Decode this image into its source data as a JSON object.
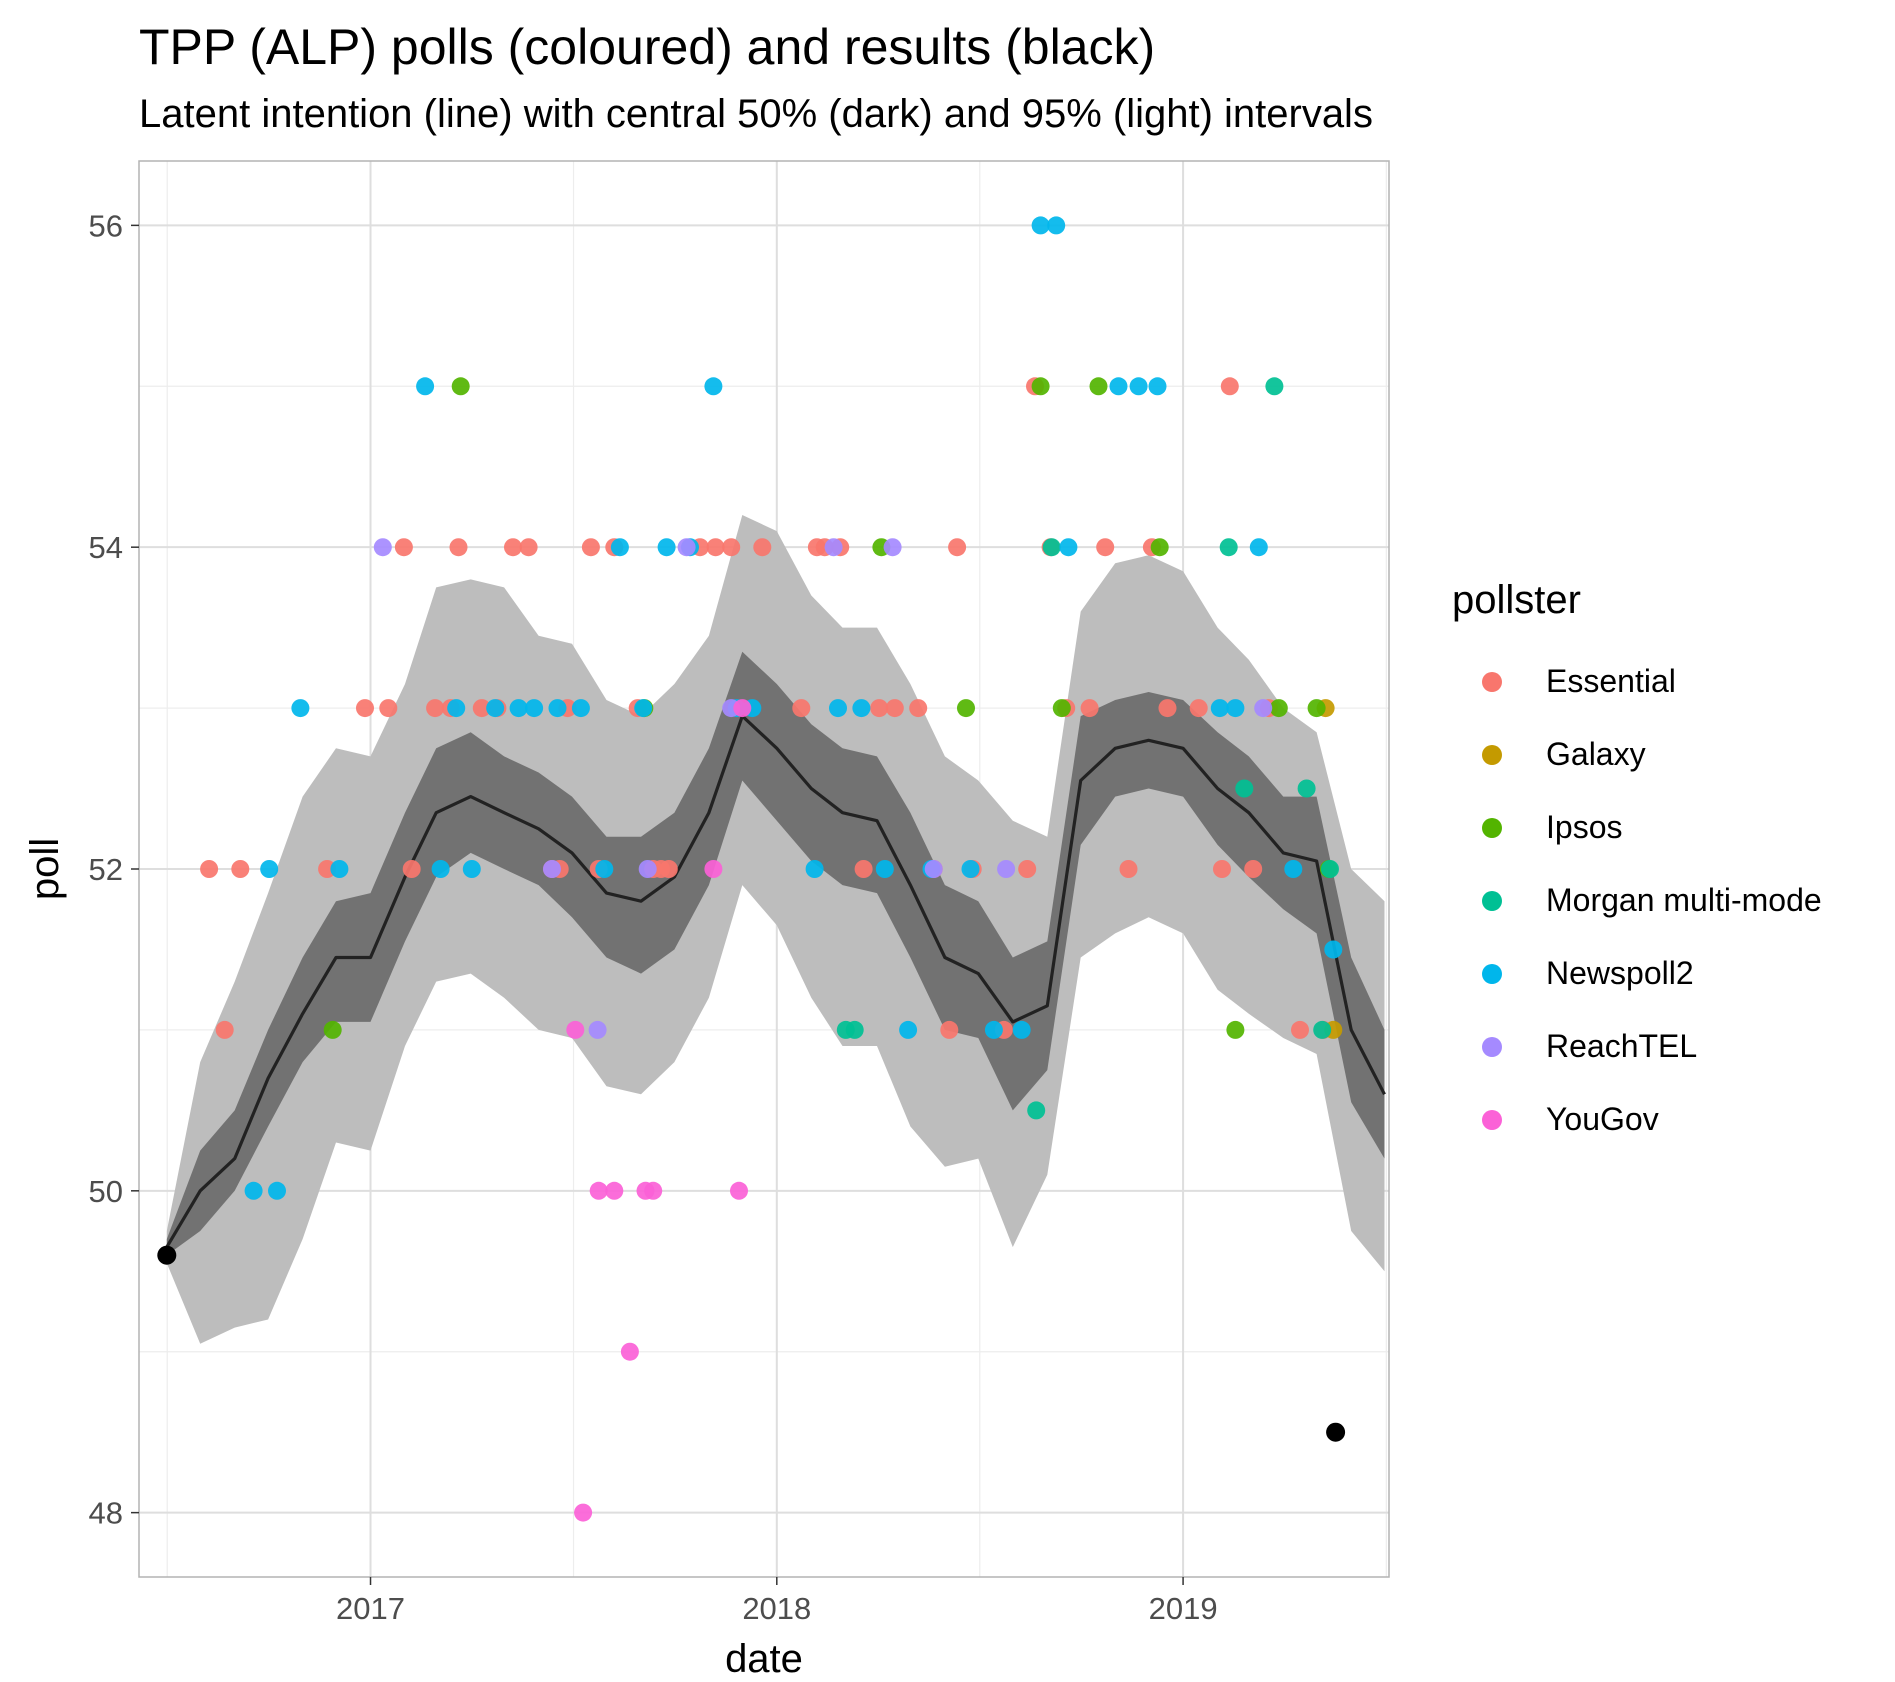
{
  "chart_data": {
    "type": "scatter",
    "title": "TPP (ALP) polls (coloured) and results (black)",
    "subtitle": "Latent intention (line) with central 50% (dark) and 95% (light) intervals",
    "xlabel": "date",
    "ylabel": "poll",
    "xlim": [
      "2016-06-07",
      "2019-07-05"
    ],
    "ylim": [
      47.6,
      56.4
    ],
    "x_ticks": [
      "2017-01-01",
      "2018-01-01",
      "2019-01-01"
    ],
    "x_tick_labels": [
      "2017",
      "2018",
      "2019"
    ],
    "y_ticks": [
      48,
      50,
      52,
      54,
      56
    ],
    "y_tick_labels": [
      "48",
      "50",
      "52",
      "54",
      "56"
    ],
    "grid": true,
    "legend_title": "pollster",
    "legend_position": "right",
    "colors": {
      "Essential": "#F8766D",
      "Galaxy": "#C49A00",
      "Ipsos": "#53B400",
      "Morgan multi-mode": "#00C094",
      "Newspoll2": "#00B6EB",
      "ReachTEL": "#A58AFF",
      "YouGov": "#FB61D7",
      "results": "#000000",
      "line": "#222222",
      "band_95": "#bdbdbd",
      "band_50": "#6e6e6e"
    },
    "legend": [
      "Essential",
      "Galaxy",
      "Ipsos",
      "Morgan multi-mode",
      "Newspoll2",
      "ReachTEL",
      "YouGov"
    ],
    "latent": {
      "x": [
        "2016-07-02",
        "2016-08-01",
        "2016-09-01",
        "2016-10-01",
        "2016-11-01",
        "2016-12-01",
        "2017-01-01",
        "2017-02-01",
        "2017-03-01",
        "2017-04-01",
        "2017-05-01",
        "2017-06-01",
        "2017-07-01",
        "2017-08-01",
        "2017-09-01",
        "2017-10-01",
        "2017-11-01",
        "2017-12-01",
        "2018-01-01",
        "2018-02-01",
        "2018-03-01",
        "2018-04-01",
        "2018-05-01",
        "2018-06-01",
        "2018-07-01",
        "2018-08-01",
        "2018-09-01",
        "2018-10-01",
        "2018-11-01",
        "2018-12-01",
        "2019-01-01",
        "2019-02-01",
        "2019-03-01",
        "2019-04-01",
        "2019-05-01",
        "2019-06-01",
        "2019-07-01"
      ],
      "mid": [
        49.65,
        50.0,
        50.2,
        50.7,
        51.1,
        51.45,
        51.45,
        51.95,
        52.35,
        52.45,
        52.35,
        52.25,
        52.1,
        51.85,
        51.8,
        51.95,
        52.35,
        52.95,
        52.75,
        52.5,
        52.35,
        52.3,
        51.9,
        51.45,
        51.35,
        51.05,
        51.15,
        52.55,
        52.75,
        52.8,
        52.75,
        52.5,
        52.35,
        52.1,
        52.05,
        51.0,
        50.6
      ],
      "lo50": [
        49.6,
        49.75,
        50.0,
        50.4,
        50.8,
        51.05,
        51.05,
        51.55,
        51.95,
        52.1,
        52.0,
        51.9,
        51.7,
        51.45,
        51.35,
        51.5,
        51.9,
        52.55,
        52.3,
        52.05,
        51.9,
        51.85,
        51.45,
        51.0,
        50.95,
        50.5,
        50.75,
        52.15,
        52.45,
        52.5,
        52.45,
        52.15,
        51.95,
        51.75,
        51.6,
        50.55,
        50.2
      ],
      "hi50": [
        49.7,
        50.25,
        50.5,
        51.0,
        51.45,
        51.8,
        51.85,
        52.35,
        52.75,
        52.85,
        52.7,
        52.6,
        52.45,
        52.2,
        52.2,
        52.35,
        52.75,
        53.35,
        53.15,
        52.9,
        52.75,
        52.7,
        52.35,
        51.9,
        51.8,
        51.45,
        51.55,
        52.95,
        53.05,
        53.1,
        53.05,
        52.85,
        52.7,
        52.45,
        52.45,
        51.45,
        51.0
      ],
      "lo95": [
        49.55,
        49.05,
        49.15,
        49.2,
        49.7,
        50.3,
        50.25,
        50.9,
        51.3,
        51.35,
        51.2,
        51.0,
        50.95,
        50.65,
        50.6,
        50.8,
        51.2,
        51.9,
        51.65,
        51.2,
        50.9,
        50.9,
        50.4,
        50.15,
        50.2,
        49.65,
        50.1,
        51.45,
        51.6,
        51.7,
        51.6,
        51.25,
        51.1,
        50.95,
        50.85,
        49.75,
        49.5
      ],
      "hi95": [
        49.75,
        50.8,
        51.3,
        51.85,
        52.45,
        52.75,
        52.7,
        53.15,
        53.75,
        53.8,
        53.75,
        53.45,
        53.4,
        53.05,
        52.95,
        53.15,
        53.45,
        54.2,
        54.1,
        53.7,
        53.5,
        53.5,
        53.15,
        52.7,
        52.55,
        52.3,
        52.2,
        53.6,
        53.9,
        53.95,
        53.85,
        53.5,
        53.3,
        53.0,
        52.85,
        52.0,
        51.8
      ]
    },
    "results": [
      {
        "x": "2016-07-02",
        "y": 49.6
      },
      {
        "x": "2019-05-18",
        "y": 48.5
      }
    ],
    "polls": [
      {
        "pollster": "Essential",
        "points": [
          [
            "2016-08-09",
            52
          ],
          [
            "2016-08-23",
            51
          ],
          [
            "2016-09-06",
            52
          ],
          [
            "2016-11-23",
            52
          ],
          [
            "2016-12-27",
            53
          ],
          [
            "2017-01-17",
            53
          ],
          [
            "2017-01-31",
            54
          ],
          [
            "2017-02-07",
            52
          ],
          [
            "2017-02-28",
            53
          ],
          [
            "2017-03-14",
            53
          ],
          [
            "2017-03-21",
            54
          ],
          [
            "2017-04-11",
            53
          ],
          [
            "2017-04-25",
            53
          ],
          [
            "2017-05-09",
            54
          ],
          [
            "2017-05-23",
            54
          ],
          [
            "2017-06-13",
            52
          ],
          [
            "2017-06-20",
            52
          ],
          [
            "2017-06-27",
            53
          ],
          [
            "2017-07-18",
            54
          ],
          [
            "2017-07-25",
            52
          ],
          [
            "2017-08-08",
            54
          ],
          [
            "2017-08-29",
            53
          ],
          [
            "2017-09-12",
            52
          ],
          [
            "2017-09-19",
            52
          ],
          [
            "2017-09-26",
            52
          ],
          [
            "2017-10-24",
            54
          ],
          [
            "2017-11-07",
            54
          ],
          [
            "2017-11-21",
            54
          ],
          [
            "2017-12-19",
            54
          ],
          [
            "2018-01-23",
            53
          ],
          [
            "2018-02-06",
            54
          ],
          [
            "2018-02-13",
            54
          ],
          [
            "2018-02-27",
            54
          ],
          [
            "2018-03-20",
            52
          ],
          [
            "2018-04-03",
            53
          ],
          [
            "2018-04-17",
            53
          ],
          [
            "2018-05-08",
            53
          ],
          [
            "2018-05-22",
            52
          ],
          [
            "2018-06-05",
            51
          ],
          [
            "2018-06-12",
            54
          ],
          [
            "2018-06-26",
            52
          ],
          [
            "2018-07-24",
            51
          ],
          [
            "2018-08-14",
            52
          ],
          [
            "2018-08-21",
            55
          ],
          [
            "2018-09-04",
            54
          ],
          [
            "2018-09-18",
            53
          ],
          [
            "2018-10-09",
            53
          ],
          [
            "2018-10-23",
            54
          ],
          [
            "2018-11-13",
            52
          ],
          [
            "2018-12-04",
            54
          ],
          [
            "2018-12-18",
            53
          ],
          [
            "2019-01-15",
            53
          ],
          [
            "2019-02-05",
            52
          ],
          [
            "2019-02-12",
            55
          ],
          [
            "2019-03-05",
            52
          ],
          [
            "2019-03-19",
            53
          ],
          [
            "2019-04-16",
            51
          ],
          [
            "2019-05-07",
            51
          ]
        ]
      },
      {
        "pollster": "Galaxy",
        "points": [
          [
            "2019-05-09",
            53
          ],
          [
            "2019-05-16",
            51
          ]
        ]
      },
      {
        "pollster": "Ipsos",
        "points": [
          [
            "2016-11-28",
            51
          ],
          [
            "2017-03-23",
            55
          ],
          [
            "2017-09-04",
            53
          ],
          [
            "2018-04-05",
            54
          ],
          [
            "2018-06-20",
            53
          ],
          [
            "2018-08-26",
            55
          ],
          [
            "2018-09-14",
            53
          ],
          [
            "2018-10-17",
            55
          ],
          [
            "2018-12-11",
            54
          ],
          [
            "2019-02-17",
            51
          ],
          [
            "2019-03-28",
            53
          ],
          [
            "2019-05-01",
            53
          ],
          [
            "2019-05-12",
            52
          ]
        ]
      },
      {
        "pollster": "Morgan multi-mode",
        "points": [
          [
            "2018-03-04",
            51
          ],
          [
            "2018-03-12",
            51
          ],
          [
            "2018-08-22",
            50.5
          ],
          [
            "2018-09-05",
            54
          ],
          [
            "2019-02-11",
            54
          ],
          [
            "2019-02-25",
            52.5
          ],
          [
            "2019-03-24",
            55
          ],
          [
            "2019-04-22",
            52.5
          ],
          [
            "2019-05-06",
            51
          ],
          [
            "2019-05-13",
            52
          ]
        ]
      },
      {
        "pollster": "Newspoll2",
        "points": [
          [
            "2016-09-18",
            50
          ],
          [
            "2016-10-02",
            52
          ],
          [
            "2016-10-09",
            50
          ],
          [
            "2016-10-30",
            53
          ],
          [
            "2016-12-04",
            52
          ],
          [
            "2017-02-19",
            55
          ],
          [
            "2017-03-05",
            52
          ],
          [
            "2017-03-19",
            53
          ],
          [
            "2017-04-02",
            52
          ],
          [
            "2017-04-23",
            53
          ],
          [
            "2017-05-14",
            53
          ],
          [
            "2017-05-28",
            53
          ],
          [
            "2017-06-18",
            53
          ],
          [
            "2017-07-09",
            53
          ],
          [
            "2017-07-30",
            52
          ],
          [
            "2017-08-13",
            54
          ],
          [
            "2017-09-03",
            53
          ],
          [
            "2017-09-24",
            54
          ],
          [
            "2017-10-15",
            54
          ],
          [
            "2017-11-05",
            55
          ],
          [
            "2017-11-26",
            53
          ],
          [
            "2017-12-10",
            53
          ],
          [
            "2018-02-04",
            52
          ],
          [
            "2018-02-25",
            53
          ],
          [
            "2018-03-18",
            53
          ],
          [
            "2018-04-08",
            52
          ],
          [
            "2018-04-29",
            51
          ],
          [
            "2018-05-20",
            52
          ],
          [
            "2018-06-24",
            52
          ],
          [
            "2018-07-15",
            51
          ],
          [
            "2018-08-09",
            51
          ],
          [
            "2018-08-26",
            56
          ],
          [
            "2018-09-09",
            56
          ],
          [
            "2018-09-20",
            54
          ],
          [
            "2018-11-04",
            55
          ],
          [
            "2018-11-22",
            55
          ],
          [
            "2018-12-09",
            55
          ],
          [
            "2019-02-03",
            53
          ],
          [
            "2019-02-17",
            53
          ],
          [
            "2019-03-10",
            54
          ],
          [
            "2019-04-10",
            52
          ],
          [
            "2019-05-16",
            51.5
          ]
        ]
      },
      {
        "pollster": "ReachTEL",
        "points": [
          [
            "2017-01-12",
            54
          ],
          [
            "2017-06-13",
            52
          ],
          [
            "2017-07-24",
            51
          ],
          [
            "2017-09-07",
            52
          ],
          [
            "2017-10-12",
            54
          ],
          [
            "2017-11-21",
            53
          ],
          [
            "2018-02-21",
            54
          ],
          [
            "2018-04-15",
            54
          ],
          [
            "2018-05-22",
            52
          ],
          [
            "2018-07-26",
            52
          ],
          [
            "2019-03-14",
            53
          ]
        ]
      },
      {
        "pollster": "YouGov",
        "points": [
          [
            "2017-07-04",
            51
          ],
          [
            "2017-07-11",
            48
          ],
          [
            "2017-07-25",
            50
          ],
          [
            "2017-08-08",
            50
          ],
          [
            "2017-08-22",
            49
          ],
          [
            "2017-09-05",
            50
          ],
          [
            "2017-09-12",
            50
          ],
          [
            "2017-11-05",
            52
          ],
          [
            "2017-11-28",
            50
          ],
          [
            "2017-12-01",
            53
          ]
        ]
      }
    ]
  }
}
